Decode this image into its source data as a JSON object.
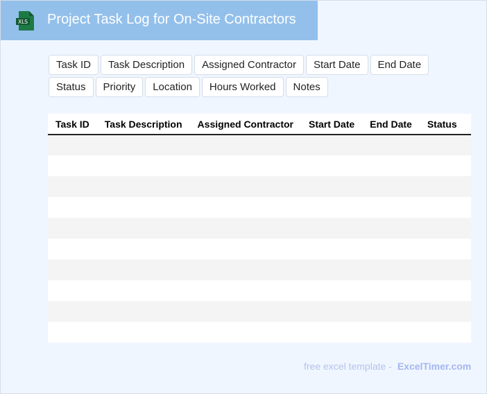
{
  "header": {
    "title": "Project Task Log for On-Site Contractors",
    "logo_text": "XLS",
    "logo_color": "#1e7a45",
    "bg_color": "#93c0eb"
  },
  "columns": [
    "Task ID",
    "Task Description",
    "Assigned Contractor",
    "Start Date",
    "End Date",
    "Status",
    "Priority",
    "Location",
    "Hours Worked",
    "Notes"
  ],
  "footer": {
    "text": "free excel template -",
    "brand": "ExcelTimer.com"
  }
}
